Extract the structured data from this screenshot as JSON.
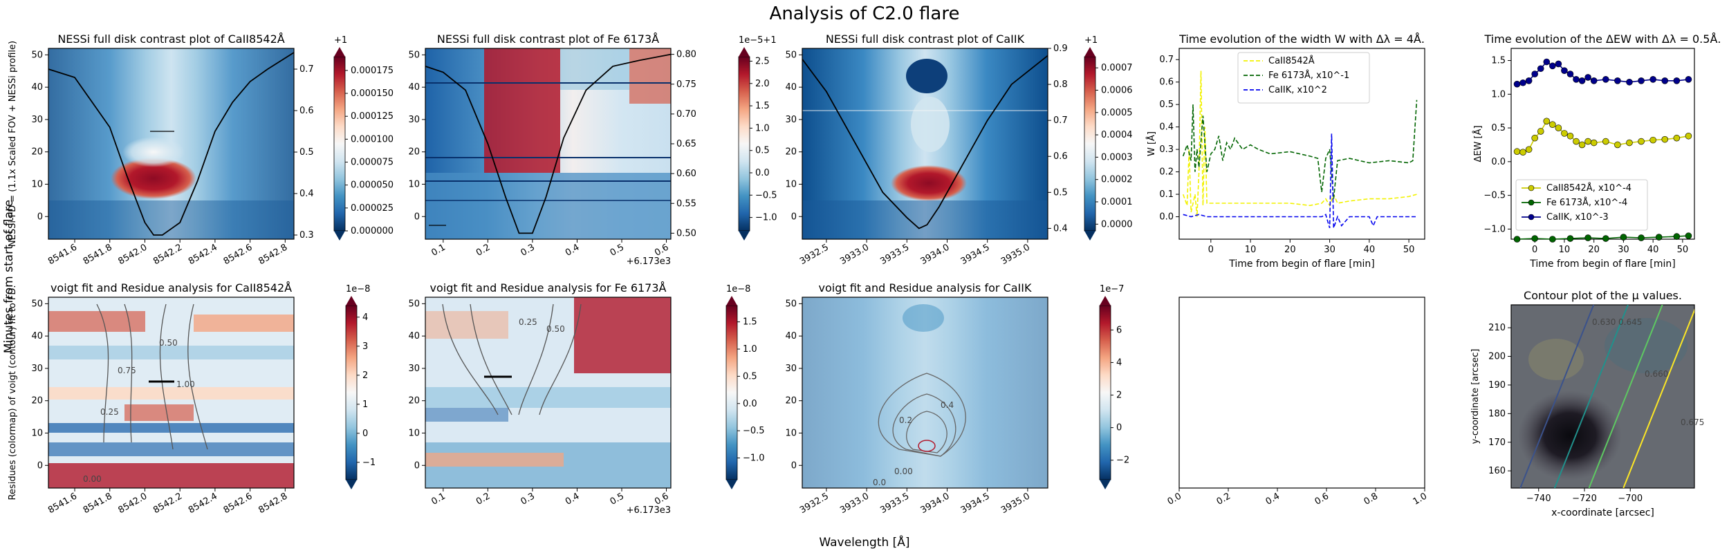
{
  "figure": {
    "suptitle": "Analysis of C2.0 flare",
    "left_label": "Minutes from start of flare",
    "bottom_label": "Wavelength [Å]"
  },
  "colors": {
    "rdbu": [
      "#053061",
      "#2166ac",
      "#4393c3",
      "#92c5de",
      "#d1e5f0",
      "#f7f7f7",
      "#fddbc7",
      "#f4a582",
      "#d6604d",
      "#b2182b",
      "#67001f"
    ],
    "yellow_series": "#f2f200",
    "green_series": "#006400",
    "blue_series": "#0000ee",
    "navy_series": "#00008b",
    "olive_series": "#cccc00",
    "mu_contours": [
      "#3b528b",
      "#21918c",
      "#5ec962",
      "#fde725"
    ]
  },
  "chart_data": [
    {
      "id": "nessi_ca8542",
      "type": "heatmap",
      "title": "NESSi full disk contrast plot of CaII8542Å",
      "ylabel": "NESSi-FD = (1.1x Scaled FOV + NESSi profile)",
      "xlim": [
        8541.45,
        8542.85
      ],
      "ylim": [
        -7,
        52
      ],
      "xticks": [
        "8541.6",
        "8541.8",
        "8542.0",
        "8542.2",
        "8542.4",
        "8542.6",
        "8542.8"
      ],
      "yticks": [
        "0",
        "10",
        "20",
        "30",
        "40",
        "50"
      ],
      "colorbar": {
        "label_top": "+1",
        "min": 0.0,
        "max": 0.00019,
        "ticks": [
          "0.000000",
          "0.000025",
          "0.000050",
          "0.000075",
          "0.000100",
          "0.000125",
          "0.000150",
          "0.000175"
        ]
      },
      "right_axis": {
        "ylim": [
          0.29,
          0.75
        ],
        "ticks": [
          "0.3",
          "0.4",
          "0.5",
          "0.6",
          "0.7"
        ]
      },
      "profile": {
        "x": [
          8541.45,
          8541.6,
          8541.8,
          8541.9,
          8542.0,
          8542.05,
          8542.1,
          8542.2,
          8542.3,
          8542.4,
          8542.5,
          8542.6,
          8542.7,
          8542.85
        ],
        "y": [
          0.7,
          0.68,
          0.56,
          0.44,
          0.33,
          0.3,
          0.3,
          0.33,
          0.43,
          0.55,
          0.62,
          0.67,
          0.7,
          0.74
        ]
      }
    },
    {
      "id": "nessi_fe6173",
      "type": "heatmap",
      "title": "NESSi full disk contrast plot of Fe 6173Å",
      "x_offset_label": "+6.173e3",
      "xlim": [
        0.06,
        0.61
      ],
      "ylim": [
        -7,
        52
      ],
      "xticks": [
        "0.1",
        "0.2",
        "0.3",
        "0.4",
        "0.5",
        "0.6"
      ],
      "yticks": [
        "0",
        "10",
        "20",
        "30",
        "40",
        "50"
      ],
      "colorbar": {
        "label_top": "1e−5+1",
        "min": -1.3,
        "max": 2.6,
        "ticks": [
          "−1.0",
          "−0.5",
          "0.0",
          "0.5",
          "1.0",
          "1.5",
          "2.0",
          "2.5"
        ]
      },
      "right_axis": {
        "ylim": [
          0.49,
          0.81
        ],
        "ticks": [
          "0.50",
          "0.55",
          "0.60",
          "0.65",
          "0.70",
          "0.75",
          "0.80"
        ]
      },
      "profile": {
        "x": [
          0.06,
          0.1,
          0.15,
          0.2,
          0.24,
          0.27,
          0.3,
          0.33,
          0.37,
          0.42,
          0.48,
          0.54,
          0.61
        ],
        "y": [
          0.78,
          0.77,
          0.74,
          0.65,
          0.56,
          0.5,
          0.5,
          0.56,
          0.66,
          0.74,
          0.78,
          0.79,
          0.8
        ]
      }
    },
    {
      "id": "nessi_cak",
      "type": "heatmap",
      "title": "NESSi full disk contrast plot of CaIIK",
      "xlim": [
        3932.2,
        3935.25
      ],
      "ylim": [
        -7,
        52
      ],
      "xticks": [
        "3932.5",
        "3933.0",
        "3933.5",
        "3934.0",
        "3934.5",
        "3935.0"
      ],
      "yticks": [
        "0",
        "10",
        "20",
        "30",
        "40",
        "50"
      ],
      "colorbar": {
        "label_top": "+1",
        "min": -3e-05,
        "max": 0.00075,
        "ticks": [
          "0.0000",
          "0.0001",
          "0.0002",
          "0.0003",
          "0.0004",
          "0.0005",
          "0.0006",
          "0.0007"
        ]
      },
      "right_axis": {
        "ylim": [
          0.37,
          0.9
        ],
        "ticks": [
          "0.4",
          "0.5",
          "0.6",
          "0.7",
          "0.8",
          "0.9"
        ]
      },
      "profile": {
        "x": [
          3932.2,
          3932.5,
          3932.9,
          3933.2,
          3933.5,
          3933.65,
          3933.75,
          3933.9,
          3934.2,
          3934.5,
          3934.8,
          3935.25
        ],
        "y": [
          0.87,
          0.78,
          0.62,
          0.5,
          0.43,
          0.4,
          0.41,
          0.46,
          0.58,
          0.7,
          0.8,
          0.88
        ]
      }
    },
    {
      "id": "width_w",
      "type": "line",
      "title": "Time evolution of the width W with Δλ = 4Å.",
      "xlabel": "Time from begin of flare [min]",
      "ylabel": "W [Å]",
      "xlim": [
        -8,
        54
      ],
      "ylim": [
        -0.1,
        0.75
      ],
      "xticks": [
        "0",
        "10",
        "20",
        "30",
        "40",
        "50"
      ],
      "yticks": [
        "0.0",
        "0.1",
        "0.2",
        "0.3",
        "0.4",
        "0.5",
        "0.6",
        "0.7"
      ],
      "legend_position": "top-center",
      "series": [
        {
          "name": "CaII8542Å",
          "style": "dashed",
          "color": "yellow",
          "x": [
            -7,
            -6,
            -5.5,
            -5,
            -4,
            -3.5,
            -3,
            -2.5,
            -2,
            -1.5,
            -1,
            0,
            2,
            5,
            10,
            15,
            20,
            25,
            28,
            29,
            30,
            31,
            32,
            35,
            40,
            45,
            50,
            52
          ],
          "y": [
            0.1,
            0.05,
            0.3,
            0.02,
            0.1,
            0.0,
            0.2,
            0.65,
            0.05,
            0.4,
            0.06,
            0.06,
            0.06,
            0.06,
            0.06,
            0.06,
            0.06,
            0.05,
            0.06,
            0.08,
            0.05,
            0.1,
            0.06,
            0.07,
            0.08,
            0.08,
            0.09,
            0.1
          ]
        },
        {
          "name": "Fe 6173Å, x10^-1",
          "style": "dashed",
          "color": "green",
          "x": [
            -7,
            -6,
            -5,
            -4.5,
            -4,
            -3.5,
            -3,
            -2,
            -1,
            0,
            1,
            2,
            3,
            4,
            5,
            6,
            8,
            10,
            12,
            15,
            20,
            25,
            27,
            28,
            29,
            30,
            31,
            32,
            35,
            40,
            45,
            50,
            51,
            52
          ],
          "y": [
            0.27,
            0.32,
            0.25,
            0.5,
            0.2,
            0.3,
            0.22,
            0.45,
            0.2,
            0.28,
            0.3,
            0.36,
            0.25,
            0.33,
            0.3,
            0.35,
            0.3,
            0.32,
            0.3,
            0.28,
            0.29,
            0.27,
            0.26,
            0.11,
            0.26,
            0.3,
            0.08,
            0.25,
            0.26,
            0.24,
            0.25,
            0.24,
            0.25,
            0.52
          ]
        },
        {
          "name": "CaIIK, x10^2",
          "style": "dashed",
          "color": "blue",
          "x": [
            -7,
            -5,
            -3,
            -1,
            0,
            5,
            10,
            15,
            20,
            25,
            28,
            29,
            30,
            30.5,
            31,
            32,
            33,
            35,
            40,
            41,
            42,
            45,
            50,
            52
          ],
          "y": [
            0.01,
            0.0,
            0.01,
            0.0,
            0.0,
            0.0,
            0.0,
            0.0,
            0.0,
            0.0,
            0.0,
            0.01,
            -0.05,
            0.37,
            -0.05,
            0.0,
            -0.04,
            0.0,
            0.0,
            -0.04,
            0.0,
            0.0,
            0.0,
            0.0
          ]
        }
      ]
    },
    {
      "id": "delta_ew",
      "type": "line",
      "title": "Time evolution of the ΔEW with Δλ = 0.5Å.",
      "xlabel": "Time from begin of flare [min]",
      "ylabel": "ΔEW [Å]",
      "xlim": [
        -8,
        54
      ],
      "ylim": [
        -1.15,
        1.68
      ],
      "xticks": [
        "0",
        "10",
        "20",
        "30",
        "40",
        "50"
      ],
      "yticks": [
        "−1.0",
        "−0.5",
        "0.0",
        "0.5",
        "1.0",
        "1.5"
      ],
      "legend_position": "lower-left",
      "series": [
        {
          "name": "CaII8542Å, x10^-4",
          "color": "olive",
          "x": [
            -6,
            -4,
            -2,
            0,
            2,
            4,
            6,
            8,
            10,
            12,
            14,
            16,
            18,
            20,
            24,
            28,
            32,
            36,
            40,
            44,
            48,
            52
          ],
          "y": [
            0.15,
            0.14,
            0.18,
            0.35,
            0.45,
            0.6,
            0.55,
            0.5,
            0.42,
            0.38,
            0.3,
            0.25,
            0.3,
            0.28,
            0.3,
            0.25,
            0.28,
            0.3,
            0.32,
            0.33,
            0.35,
            0.38
          ]
        },
        {
          "name": "Fe 6173Å, x10^-4",
          "color": "green",
          "x": [
            -6,
            0,
            6,
            12,
            18,
            24,
            30,
            36,
            42,
            48,
            52
          ],
          "y": [
            -1.15,
            -1.14,
            -1.15,
            -1.14,
            -1.13,
            -1.14,
            -1.12,
            -1.13,
            -1.12,
            -1.11,
            -1.1
          ]
        },
        {
          "name": "CaIIK, x10^-3",
          "color": "navy",
          "x": [
            -6,
            -4,
            -2,
            0,
            2,
            4,
            6,
            8,
            10,
            12,
            14,
            16,
            18,
            20,
            24,
            28,
            32,
            36,
            40,
            44,
            48,
            52
          ],
          "y": [
            1.15,
            1.17,
            1.2,
            1.3,
            1.38,
            1.48,
            1.42,
            1.45,
            1.35,
            1.3,
            1.22,
            1.2,
            1.25,
            1.2,
            1.22,
            1.2,
            1.18,
            1.2,
            1.22,
            1.2,
            1.2,
            1.22
          ]
        }
      ]
    },
    {
      "id": "voigt_ca8542",
      "type": "heatmap",
      "title": "voigt fit and Residue analysis for CaII8542Å",
      "ylabel": "Residues (colormap) of voigt (contour) fit to FD.",
      "xlim": [
        8541.45,
        8542.85
      ],
      "ylim": [
        -7,
        52
      ],
      "xticks": [
        "8541.6",
        "8541.8",
        "8542.0",
        "8542.2",
        "8542.4",
        "8542.6",
        "8542.8"
      ],
      "yticks": [
        "0",
        "10",
        "20",
        "30",
        "40",
        "50"
      ],
      "colorbar": {
        "label_top": "1e−8",
        "min": -1.6,
        "max": 4.4,
        "ticks": [
          "−1",
          "0",
          "1",
          "2",
          "3",
          "4"
        ]
      },
      "contour_labels": [
        "0.75",
        "0.50",
        "0.25",
        "1.00",
        "0.00"
      ]
    },
    {
      "id": "voigt_fe6173",
      "type": "heatmap",
      "title": "voigt fit and Residue analysis for Fe 6173Å",
      "x_offset_label": "+6.173e3",
      "xlim": [
        0.06,
        0.61
      ],
      "ylim": [
        -7,
        52
      ],
      "xticks": [
        "0.1",
        "0.2",
        "0.3",
        "0.4",
        "0.5",
        "0.6"
      ],
      "yticks": [
        "0",
        "10",
        "20",
        "30",
        "40",
        "50"
      ],
      "colorbar": {
        "label_top": "1e−8",
        "min": -1.4,
        "max": 1.8,
        "ticks": [
          "−1.0",
          "−0.5",
          "0.0",
          "0.5",
          "1.0",
          "1.5"
        ]
      },
      "contour_labels": [
        "0.25",
        "0.50"
      ]
    },
    {
      "id": "voigt_cak",
      "type": "heatmap",
      "title": "voigt fit and Residue analysis for CaIIK",
      "xlim": [
        3932.2,
        3935.25
      ],
      "ylim": [
        -7,
        52
      ],
      "xticks": [
        "3932.5",
        "3933.0",
        "3933.5",
        "3934.0",
        "3934.5",
        "3935.0"
      ],
      "yticks": [
        "0",
        "10",
        "20",
        "30",
        "40",
        "50"
      ],
      "colorbar": {
        "label_top": "1e−7",
        "min": -3.2,
        "max": 7.5,
        "ticks": [
          "−2",
          "0",
          "2",
          "4",
          "6"
        ]
      },
      "contour_labels": [
        "0.2",
        "0.4",
        "0.0",
        "0.00"
      ]
    },
    {
      "id": "empty_panel",
      "type": "line",
      "title": "",
      "xlim": [
        0,
        1
      ],
      "ylim": [
        0,
        1
      ],
      "xticks": [
        "0.0",
        "0.2",
        "0.4",
        "0.6",
        "0.8",
        "1.0"
      ],
      "series": []
    },
    {
      "id": "mu_contour",
      "type": "heatmap",
      "title": "Contour plot of the μ values.",
      "xlabel": "x-coordinate [arcsec]",
      "ylabel": "y-coordinate [arcsec]",
      "xlim": [
        -752,
        -672
      ],
      "ylim": [
        154,
        218
      ],
      "xticks": [
        "−740",
        "−720",
        "−700"
      ],
      "yticks": [
        "160",
        "170",
        "180",
        "190",
        "200",
        "210"
      ],
      "contour_labels": [
        "0.630",
        "0.645",
        "0.660",
        "0.675"
      ]
    }
  ]
}
